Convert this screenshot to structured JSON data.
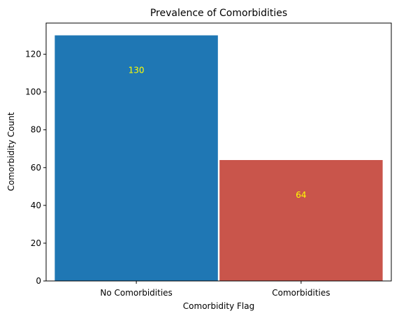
{
  "chart_data": {
    "type": "bar",
    "title": "Prevalence of Comorbidities",
    "xlabel": "Comorbidity Flag",
    "ylabel": "Comorbidity Count",
    "categories": [
      "No Comorbidities",
      "Comorbidities"
    ],
    "values": [
      130,
      64
    ],
    "data_labels": [
      "130",
      "64"
    ],
    "bar_colors": [
      "#1f77b4",
      "#c9554b"
    ],
    "data_label_color": "#ffff00",
    "ylim": [
      0,
      136.5
    ],
    "yticks": [
      0,
      20,
      40,
      60,
      80,
      100,
      120
    ],
    "grid": false,
    "legend": "none"
  }
}
